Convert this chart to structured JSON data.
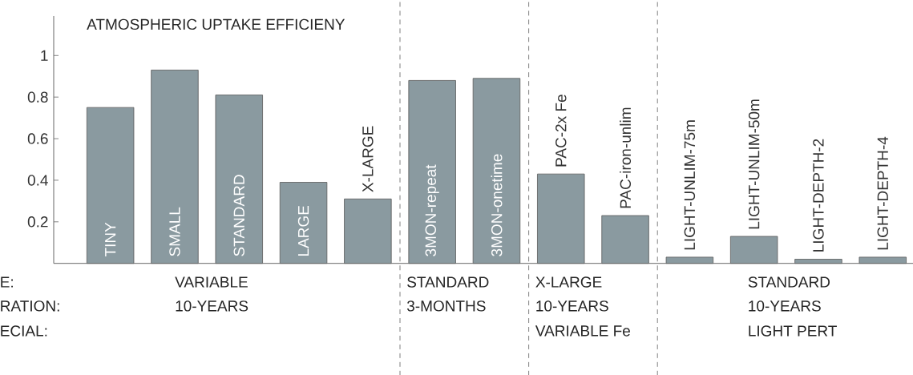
{
  "chart_data": {
    "type": "bar",
    "title": "ATMOSPHERIC UPTAKE EFFICIENY",
    "categories": [
      "TINY",
      "SMALL",
      "STANDARD",
      "LARGE",
      "X-LARGE",
      "3MON-repeat",
      "3MON-onetime",
      "PAC-2x Fe",
      "PAC-iron-unlim",
      "LIGHT-UNLIM-75m",
      "LIGHT-UNLIM-50m",
      "LIGHT-DEPTH-2",
      "LIGHT-DEPTH-4"
    ],
    "values": [
      0.75,
      0.93,
      0.81,
      0.39,
      0.31,
      0.88,
      0.89,
      0.43,
      0.23,
      0.03,
      0.13,
      0.02,
      0.03
    ],
    "color": "#8a9aa0",
    "ylim": [
      0,
      1.19
    ],
    "yticks": [
      0.2,
      0.4,
      0.6,
      0.8,
      1
    ],
    "annotations": [
      "E:",
      "RATION:",
      "ECIAL:",
      "VARIABLE",
      "10-YEARS",
      "STANDARD",
      "3-MONTHS",
      "X-LARGE",
      "10-YEARS",
      "VARIABLE Fe",
      "STANDARD",
      "10-YEARS",
      "LIGHT PERT"
    ]
  }
}
